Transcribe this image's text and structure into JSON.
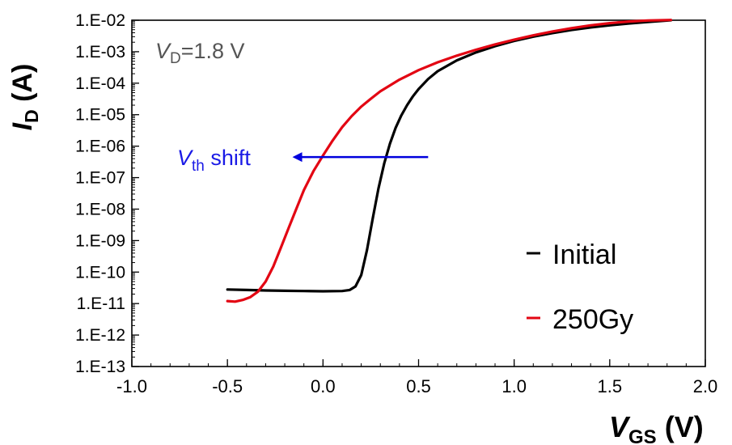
{
  "chart_data": {
    "type": "line",
    "title": "",
    "xlabel": {
      "main": "V",
      "sub": "GS",
      "unit": " (V)"
    },
    "ylabel": {
      "main": "I",
      "sub": "D",
      "unit": " (A)"
    },
    "xlim": [
      -1.0,
      2.0
    ],
    "ylim_log10": [
      -13,
      -2
    ],
    "y_scale": "log",
    "grid": false,
    "legend_position": "right",
    "x_ticks": [
      "-1.0",
      "-0.5",
      "0.0",
      "0.5",
      "1.0",
      "1.5",
      "2.0"
    ],
    "x_tick_values": [
      -1.0,
      -0.5,
      0.0,
      0.5,
      1.0,
      1.5,
      2.0
    ],
    "y_ticks": [
      "1.E-02",
      "1.E-03",
      "1.E-04",
      "1.E-05",
      "1.E-06",
      "1.E-07",
      "1.E-08",
      "1.E-09",
      "1.E-10",
      "1.E-11",
      "1.E-12",
      "1.E-13"
    ],
    "y_tick_exponents": [
      -2,
      -3,
      -4,
      -5,
      -6,
      -7,
      -8,
      -9,
      -10,
      -11,
      -12,
      -13
    ],
    "series": [
      {
        "name": "Initial",
        "color": "#000000",
        "x": [
          -0.5,
          -0.4,
          -0.3,
          -0.2,
          -0.1,
          0.0,
          0.1,
          0.14,
          0.17,
          0.2,
          0.23,
          0.26,
          0.29,
          0.32,
          0.35,
          0.38,
          0.41,
          0.44,
          0.47,
          0.5,
          0.55,
          0.6,
          0.7,
          0.8,
          0.9,
          1.0,
          1.1,
          1.2,
          1.3,
          1.4,
          1.5,
          1.6,
          1.7,
          1.82
        ],
        "y": [
          2.8e-11,
          2.7e-11,
          2.6e-11,
          2.55e-11,
          2.5e-11,
          2.45e-11,
          2.5e-11,
          2.7e-11,
          3.5e-11,
          8e-11,
          5e-10,
          5e-09,
          4.5e-08,
          2.8e-07,
          1.2e-06,
          3.8e-06,
          9.5e-06,
          2e-05,
          3.8e-05,
          6.5e-05,
          0.000135,
          0.00024,
          0.00053,
          0.00095,
          0.0015,
          0.0022,
          0.003,
          0.0039,
          0.0049,
          0.0059,
          0.0069,
          0.0079,
          0.0088,
          0.01
        ]
      },
      {
        "name": "250Gy",
        "color": "#e30613",
        "x": [
          -0.5,
          -0.46,
          -0.42,
          -0.38,
          -0.34,
          -0.3,
          -0.26,
          -0.22,
          -0.18,
          -0.14,
          -0.1,
          -0.05,
          0.0,
          0.05,
          0.1,
          0.15,
          0.2,
          0.25,
          0.3,
          0.4,
          0.5,
          0.6,
          0.7,
          0.8,
          0.9,
          1.0,
          1.1,
          1.2,
          1.3,
          1.4,
          1.5,
          1.6,
          1.7,
          1.82
        ],
        "y": [
          1.2e-11,
          1.15e-11,
          1.3e-11,
          1.6e-11,
          2.4e-11,
          5e-11,
          1.5e-10,
          6e-10,
          2.5e-09,
          1e-08,
          4e-08,
          1.6e-07,
          5e-07,
          1.5e-06,
          4e-06,
          9e-06,
          1.8e-05,
          3.2e-05,
          5.5e-05,
          0.00013,
          0.00026,
          0.00046,
          0.00075,
          0.00115,
          0.0017,
          0.0024,
          0.0033,
          0.0044,
          0.0056,
          0.0069,
          0.0081,
          0.0091,
          0.0098,
          0.0102
        ]
      }
    ],
    "annotations": {
      "vd": {
        "main": "V",
        "sub": "D",
        "rest": "=1.8 V"
      },
      "vth": {
        "main": "V",
        "sub": "th",
        "rest": " shift"
      },
      "arrow": {
        "from_x": 0.55,
        "to_x": -0.16,
        "y": 4.5e-07,
        "color": "#0000dd"
      }
    }
  }
}
